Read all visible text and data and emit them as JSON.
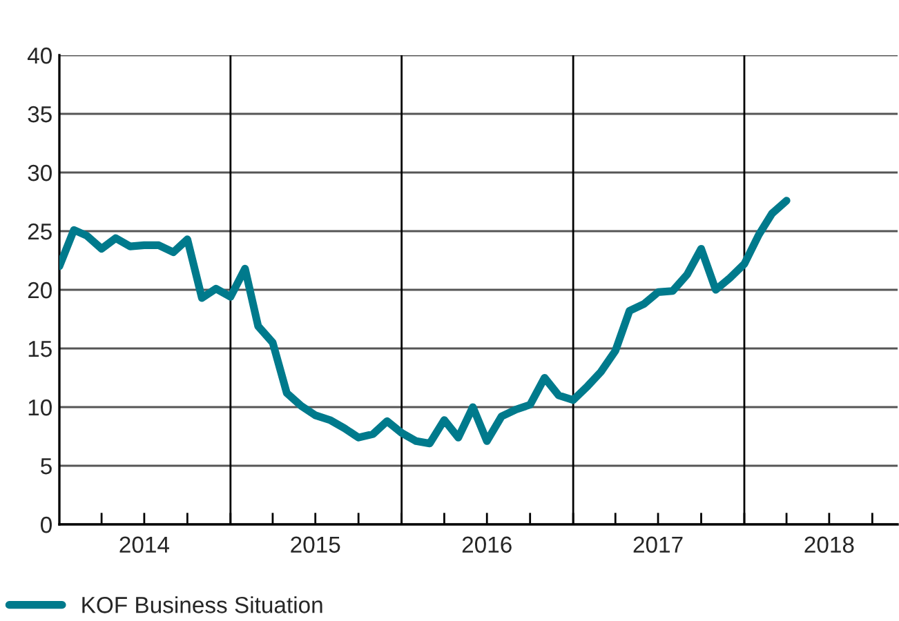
{
  "chart_data": {
    "type": "line",
    "x": [
      "2014-01",
      "2014-02",
      "2014-03",
      "2014-04",
      "2014-05",
      "2014-06",
      "2014-07",
      "2014-08",
      "2014-09",
      "2014-10",
      "2014-11",
      "2014-12",
      "2015-01",
      "2015-02",
      "2015-03",
      "2015-04",
      "2015-05",
      "2015-06",
      "2015-07",
      "2015-08",
      "2015-09",
      "2015-10",
      "2015-11",
      "2015-12",
      "2016-01",
      "2016-02",
      "2016-03",
      "2016-04",
      "2016-05",
      "2016-06",
      "2016-07",
      "2016-08",
      "2016-09",
      "2016-10",
      "2016-11",
      "2016-12",
      "2017-01",
      "2017-02",
      "2017-03",
      "2017-04",
      "2017-05",
      "2017-06",
      "2017-07",
      "2017-08",
      "2017-09",
      "2017-10",
      "2017-11",
      "2017-12",
      "2018-01",
      "2018-02",
      "2018-03",
      "2018-04"
    ],
    "series": [
      {
        "name": "KOF Business Situation",
        "color": "#007a8c",
        "values": [
          22.0,
          25.1,
          24.6,
          23.5,
          24.4,
          23.7,
          23.8,
          23.8,
          23.2,
          24.3,
          19.3,
          20.1,
          19.4,
          21.8,
          16.9,
          15.5,
          11.2,
          10.1,
          9.3,
          8.9,
          8.2,
          7.4,
          7.7,
          8.8,
          7.8,
          7.1,
          6.9,
          8.9,
          7.4,
          10.0,
          7.1,
          9.2,
          9.8,
          10.2,
          12.5,
          11.0,
          10.6,
          11.8,
          13.0,
          14.8,
          18.2,
          18.8,
          19.8,
          19.9,
          21.3,
          23.5,
          20.0,
          21.0,
          22.2,
          24.7,
          26.5,
          27.6
        ]
      }
    ],
    "xlim": [
      "2014-01-01",
      "2018-11-24"
    ],
    "xticks": [
      {
        "value": "2014-04-01",
        "label": null
      },
      {
        "value": "2014-07-01",
        "label": "2014"
      },
      {
        "value": "2014-10-01",
        "label": null
      },
      {
        "value": "2015-01-01",
        "label": null
      },
      {
        "value": "2015-04-01",
        "label": null
      },
      {
        "value": "2015-07-01",
        "label": "2015"
      },
      {
        "value": "2015-10-01",
        "label": null
      },
      {
        "value": "2016-01-01",
        "label": null
      },
      {
        "value": "2016-04-01",
        "label": null
      },
      {
        "value": "2016-07-01",
        "label": "2016"
      },
      {
        "value": "2016-10-01",
        "label": null
      },
      {
        "value": "2017-01-01",
        "label": null
      },
      {
        "value": "2017-04-01",
        "label": null
      },
      {
        "value": "2017-07-01",
        "label": "2017"
      },
      {
        "value": "2017-10-01",
        "label": null
      },
      {
        "value": "2018-01-01",
        "label": null
      },
      {
        "value": "2018-04-01",
        "label": null
      },
      {
        "value": "2018-07-01",
        "label": "2018"
      },
      {
        "value": "2018-10-01",
        "label": null
      }
    ],
    "ylim": [
      0,
      40
    ],
    "yticks": [
      0,
      5,
      10,
      15,
      20,
      25,
      30,
      35,
      40
    ],
    "ref_lines": [
      {
        "axis": "x",
        "value": "2015-01-01",
        "color": "#000000"
      },
      {
        "axis": "x",
        "value": "2016-01-01",
        "color": "#000000"
      },
      {
        "axis": "x",
        "value": "2017-01-01",
        "color": "#000000"
      },
      {
        "axis": "x",
        "value": "2018-01-01",
        "color": "#000000"
      }
    ],
    "grid": "y",
    "legend": "bottom left",
    "line_style": "solid",
    "marker": "none"
  }
}
